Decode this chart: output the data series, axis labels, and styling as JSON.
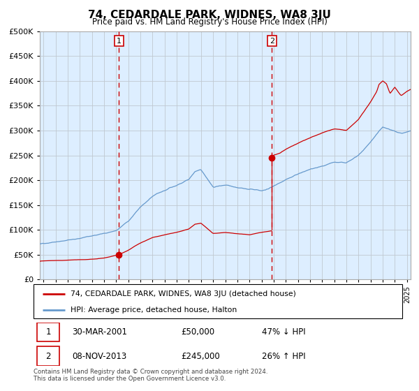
{
  "title": "74, CEDARDALE PARK, WIDNES, WA8 3JU",
  "subtitle": "Price paid vs. HM Land Registry's House Price Index (HPI)",
  "legend_line1": "74, CEDARDALE PARK, WIDNES, WA8 3JU (detached house)",
  "legend_line2": "HPI: Average price, detached house, Halton",
  "footnote": "Contains HM Land Registry data © Crown copyright and database right 2024.\nThis data is licensed under the Open Government Licence v3.0.",
  "sale1_date": "30-MAR-2001",
  "sale1_price": "£50,000",
  "sale1_hpi": "47% ↓ HPI",
  "sale2_date": "08-NOV-2013",
  "sale2_price": "£245,000",
  "sale2_hpi": "26% ↑ HPI",
  "hpi_color": "#6699cc",
  "price_color": "#cc0000",
  "vline_color": "#cc0000",
  "background_color": "#ddeeff",
  "grid_color": "#c0c8d0",
  "ylim": [
    0,
    500000
  ],
  "yticks": [
    0,
    50000,
    100000,
    150000,
    200000,
    250000,
    300000,
    350000,
    400000,
    450000,
    500000
  ],
  "xlim_start": 1994.7,
  "xlim_end": 2025.3,
  "sale1_x": 2001.24,
  "sale1_y": 50000,
  "sale2_x": 2013.85,
  "sale2_y": 245000
}
